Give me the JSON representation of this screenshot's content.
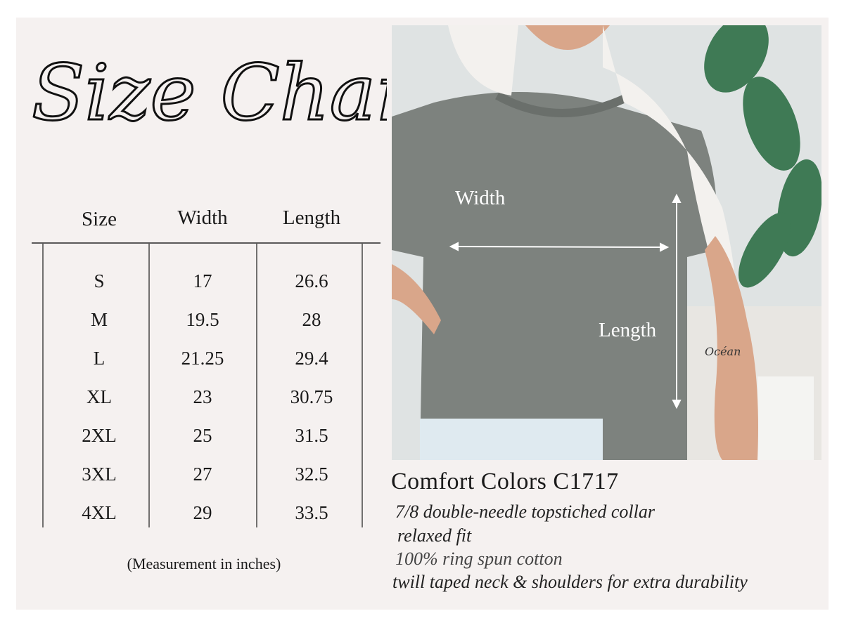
{
  "title": "Size Chart",
  "table": {
    "headers": [
      "Size",
      "Width",
      "Length"
    ],
    "rows": [
      [
        "S",
        "17",
        "26.6"
      ],
      [
        "M",
        "19.5",
        "28"
      ],
      [
        "L",
        "21.25",
        "29.4"
      ],
      [
        "XL",
        "23",
        "30.75"
      ],
      [
        "2XL",
        "25",
        "31.5"
      ],
      [
        "3XL",
        "27",
        "32.5"
      ],
      [
        "4XL",
        "29",
        "33.5"
      ]
    ],
    "note": "(Measurement in inches)"
  },
  "photo": {
    "width_label": "Width",
    "length_label": "Length",
    "tattoo_text": "Océan"
  },
  "product": {
    "name": "Comfort Colors C1717",
    "features": [
      "7/8 double-needle topstiched collar",
      "relaxed fit",
      "100% ring spun cotton",
      "twill taped neck & shoulders for extra durability"
    ]
  },
  "colors": {
    "panel": "#f5f1f0",
    "shirt": "#7d827e",
    "text": "#1a1a1a"
  }
}
